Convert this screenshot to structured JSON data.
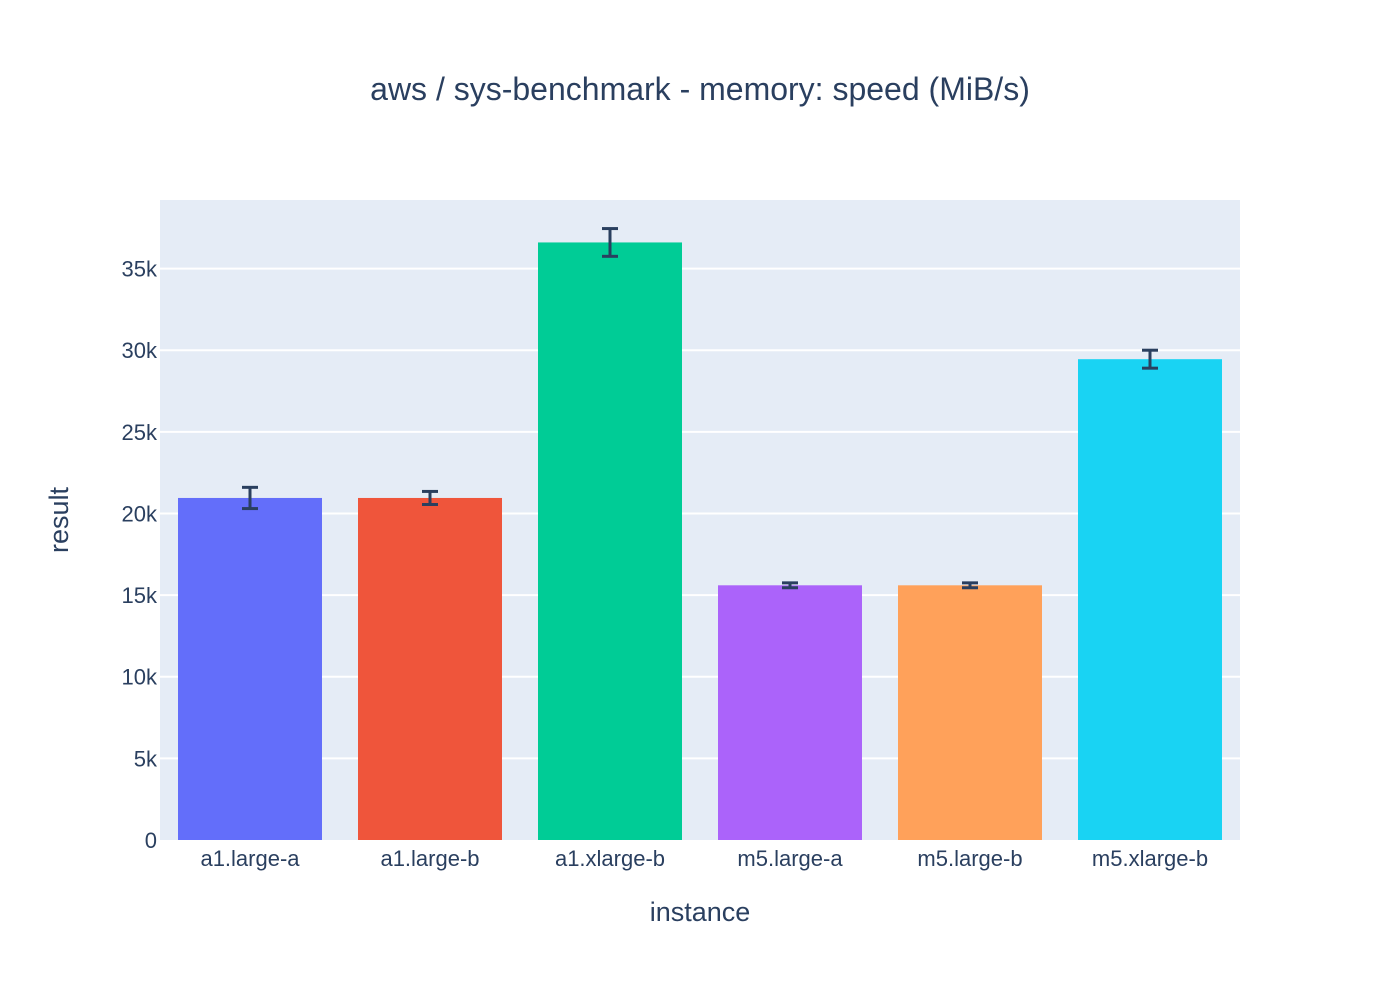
{
  "chart_data": {
    "type": "bar",
    "title": "aws / sys-benchmark - memory: speed (MiB/s)",
    "xlabel": "instance",
    "ylabel": "result",
    "categories": [
      "a1.large-a",
      "a1.large-b",
      "a1.xlarge-b",
      "m5.large-a",
      "m5.large-b",
      "m5.xlarge-b"
    ],
    "values": [
      20950,
      20950,
      36600,
      15600,
      15600,
      29450
    ],
    "error": [
      650,
      400,
      850,
      150,
      150,
      550
    ],
    "colors": [
      "#636efa",
      "#ef553b",
      "#00cc96",
      "#ab63fa",
      "#ffa15a",
      "#19d3f3"
    ],
    "ylim": [
      0,
      39200
    ],
    "yticks": [
      0,
      5000,
      10000,
      15000,
      20000,
      25000,
      30000,
      35000
    ],
    "ytick_labels": [
      "0",
      "5k",
      "10k",
      "15k",
      "20k",
      "25k",
      "30k",
      "35k"
    ],
    "grid": true,
    "plot_background": "#e5ecf6",
    "error_bar_color": "#2a3f5f"
  }
}
